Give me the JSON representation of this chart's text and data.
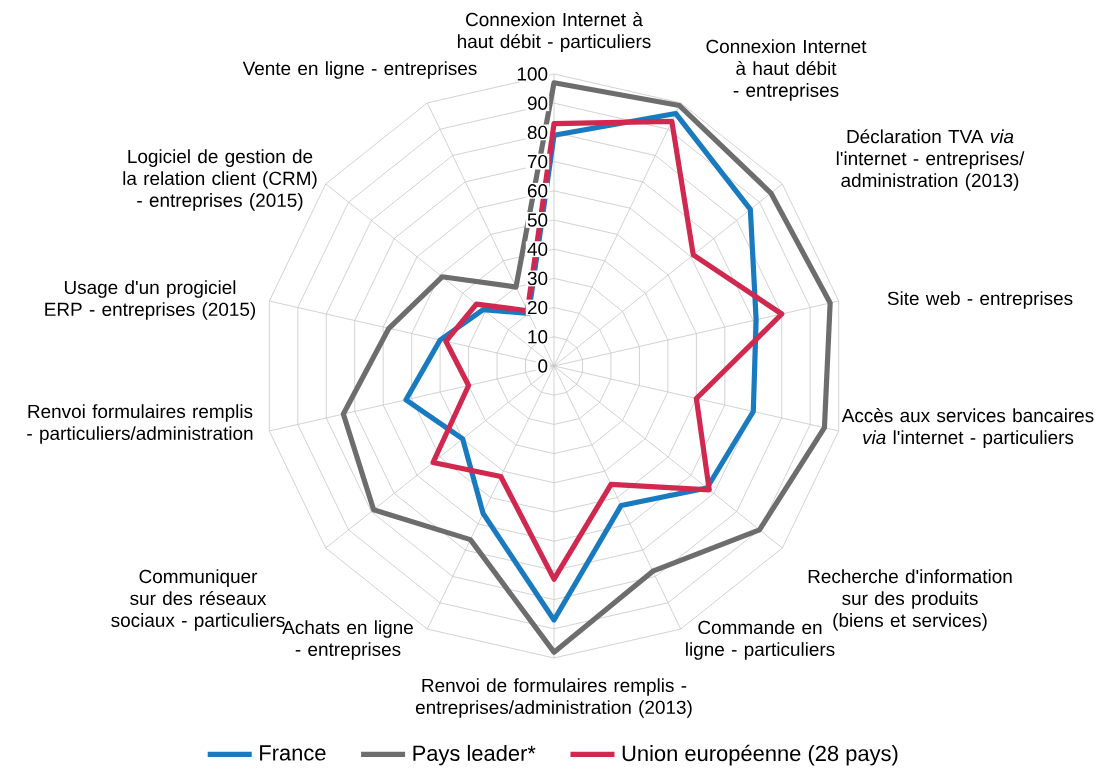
{
  "chart_data": {
    "type": "radar",
    "categories": [
      "Connexion Internet à haut débit - particuliers",
      "Connexion Internet à haut débit - entreprises",
      "Déclaration TVA *via* l'internet - entreprises/administration (2013)",
      "Site web - entreprises",
      "Accès aux services bancaires *via* l'internet - particuliers",
      "Recherche d'information sur des produits (biens et services)",
      "Commande en ligne - particuliers",
      "Renvoi de formulaires remplis - entreprises/administration (2013)",
      "Achats en ligne - entreprises",
      "Communiquer sur des réseaux sociaux - particuliers",
      "Renvoi formulaires remplis - particuliers/administration",
      "Usage d'un progiciel ERP - entreprises (2015)",
      "Logiciel de gestion de la relation client (CRM) - entreprises (2015)",
      "Vente en ligne - entreprises"
    ],
    "series": [
      {
        "name": "France",
        "color": "#1a7abf",
        "values": [
          79,
          96,
          86,
          71,
          70,
          67,
          53,
          87,
          56,
          40,
          52,
          40,
          31,
          20
        ]
      },
      {
        "name": "Pays leader*",
        "color": "#6d6d6d",
        "values": [
          97,
          99,
          95,
          97,
          95,
          90,
          78,
          98,
          66,
          79,
          74,
          58,
          49,
          30
        ]
      },
      {
        "name": "Union européenne (28 pays)",
        "color": "#d0284f",
        "values": [
          83,
          93,
          61,
          80,
          50,
          68,
          45,
          73,
          42,
          53,
          30,
          38,
          34,
          21
        ]
      }
    ],
    "ylim": [
      0,
      100
    ],
    "yticks": [
      0,
      10,
      20,
      30,
      40,
      50,
      60,
      70,
      80,
      90,
      100
    ],
    "grid": true,
    "legend": "bottom"
  }
}
